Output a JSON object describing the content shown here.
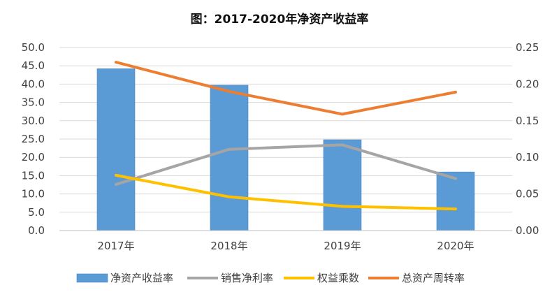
{
  "chart_data": {
    "type": "bar",
    "title": "图：2017-2020年净资产收益率",
    "categories": [
      "2017年",
      "2018年",
      "2019年",
      "2020年"
    ],
    "y_left": {
      "min": 0,
      "max": 50,
      "step": 5,
      "decimals": 1
    },
    "y_right": {
      "min": 0,
      "max": 0.25,
      "step": 0.05,
      "decimals": 2
    },
    "grid": true,
    "legend_position": "bottom",
    "series": [
      {
        "name": "净资产收益率",
        "type": "bar",
        "axis": "left",
        "color": "#5B9BD5",
        "values": [
          44.2,
          39.7,
          24.8,
          16.0
        ]
      },
      {
        "name": "销售净利率",
        "type": "line",
        "axis": "right",
        "color": "#A5A5A5",
        "values": [
          0.063,
          0.111,
          0.117,
          0.071
        ]
      },
      {
        "name": "权益乘数",
        "type": "line",
        "axis": "left",
        "color": "#FFC000",
        "values": [
          15.1,
          9.2,
          6.6,
          5.9
        ]
      },
      {
        "name": "总资产周转率",
        "type": "line",
        "axis": "right",
        "color": "#ED7D31",
        "values": [
          0.23,
          0.19,
          0.159,
          0.189
        ]
      }
    ]
  }
}
